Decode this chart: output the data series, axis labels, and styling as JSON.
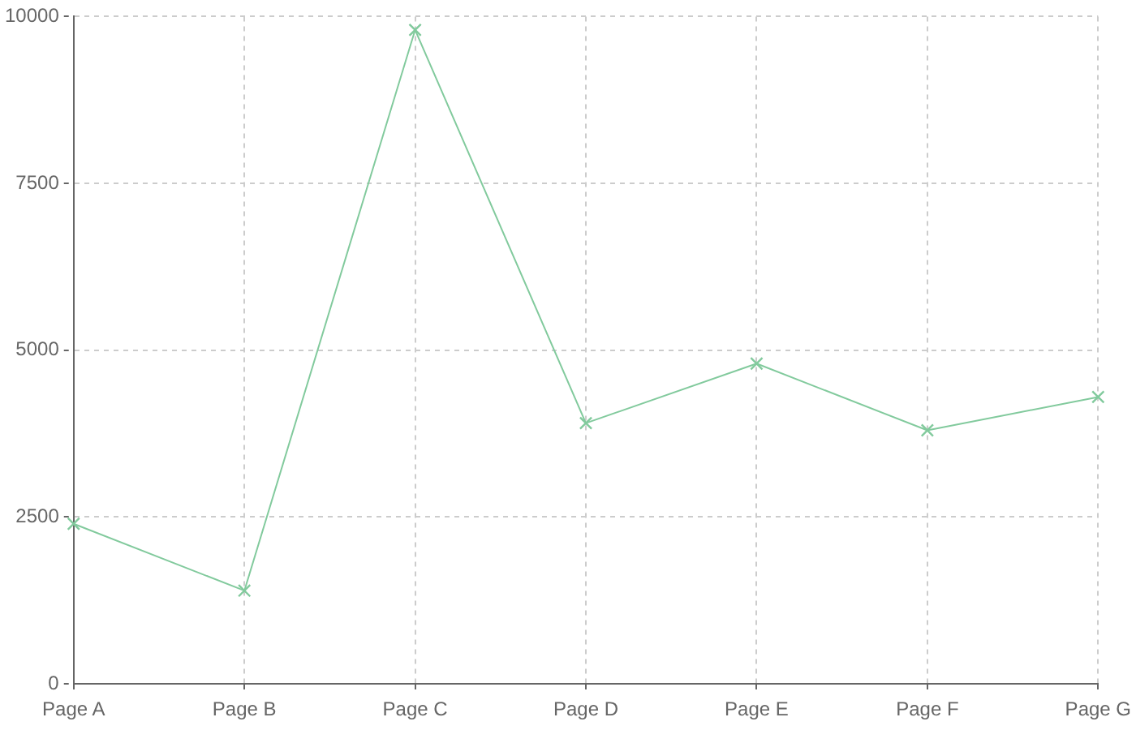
{
  "chart_data": {
    "type": "line",
    "categories": [
      "Page A",
      "Page B",
      "Page C",
      "Page D",
      "Page E",
      "Page F",
      "Page G"
    ],
    "series": [
      {
        "color": "#82ca9d",
        "values": [
          2400,
          1398,
          9800,
          3908,
          4800,
          3800,
          4300
        ]
      }
    ],
    "ylim": [
      0,
      10000
    ],
    "yticks": [
      0,
      2500,
      5000,
      7500,
      10000
    ],
    "grid": true,
    "legend": false,
    "marker": "cross",
    "line_style": "solid"
  }
}
